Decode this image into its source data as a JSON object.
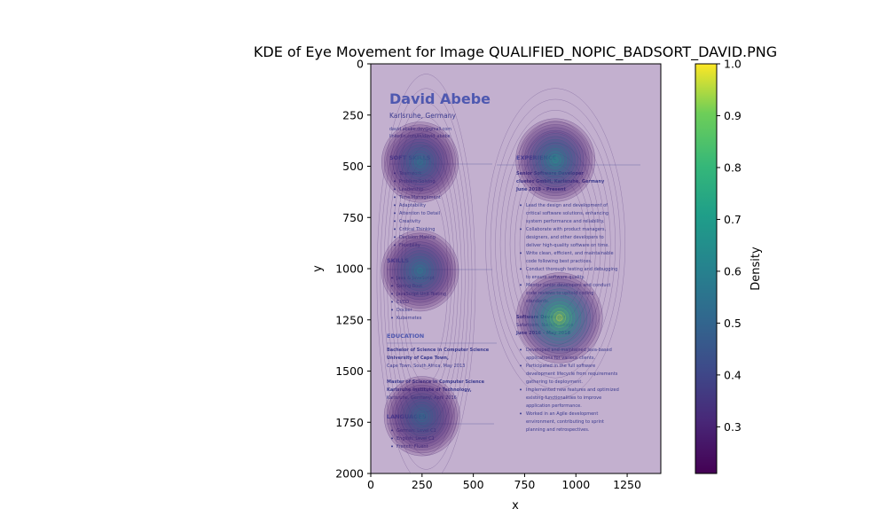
{
  "chart_data": {
    "type": "heatmap",
    "title": "KDE of Eye Movement for Image QUALIFIED_NOPIC_BADSORT_DAVID.PNG",
    "xlabel": "x",
    "ylabel": "y",
    "xlim": [
      0,
      1414
    ],
    "ylim": [
      2000,
      0
    ],
    "y_inverted": true,
    "x_ticks": [
      0,
      250,
      500,
      750,
      1000,
      1250
    ],
    "y_ticks": [
      0,
      250,
      500,
      750,
      1000,
      1250,
      1500,
      1750,
      2000
    ],
    "colorbar": {
      "label": "Density",
      "colormap": "viridis",
      "range": [
        0.21,
        1.0
      ],
      "ticks": [
        0.3,
        0.4,
        0.5,
        0.6,
        0.7,
        0.8,
        0.9,
        1.0
      ]
    },
    "hotspots": [
      {
        "x": 240,
        "y": 480,
        "density": 0.62
      },
      {
        "x": 900,
        "y": 470,
        "density": 0.72
      },
      {
        "x": 240,
        "y": 1010,
        "density": 0.64
      },
      {
        "x": 920,
        "y": 1240,
        "density": 1.0
      },
      {
        "x": 250,
        "y": 1720,
        "density": 0.58
      }
    ],
    "colors": {
      "background_tint": "#c3b0cf",
      "contour": "#5a3d80"
    }
  },
  "resume": {
    "name": "David Abebe",
    "location": "Karlsruhe, Germany",
    "email": "david.abebe.dev@gmail.com",
    "linkedin": "linkedin.com/in/david_abebe",
    "soft_skills_heading": "SOFT SKILLS",
    "soft_skills": [
      "Teamwork",
      "Problem-Solving",
      "Leadership",
      "Time Management",
      "Adaptability",
      "Attention to Detail",
      "Creativity",
      "Critical Thinking",
      "Decision Making",
      "Flexibility"
    ],
    "skills_heading": "SKILLS",
    "skills": [
      "Java & JavaScript",
      "Spring Boot",
      "JavaScript Unit Testing",
      "CI/CD",
      "Docker",
      "Kubernetes"
    ],
    "education_heading": "EDUCATION",
    "edu1_title": "Bachelor of Science in Computer Science",
    "edu1_school": "University of Cape Town,",
    "edu1_place": "Cape Town, South Africa, May 2013",
    "edu2_title": "Master of Science in Computer Science",
    "edu2_school": "Karlsruhe Institute of Technology,",
    "edu2_place": "Karlsruhe, Germany, April 2016",
    "languages_heading": "LANGUAGES",
    "languages": [
      "German: Level C1",
      "English: Level C1",
      "French: Fluent"
    ],
    "experience_heading": "EXPERIENCE",
    "job1_title": "Senior Software Developer",
    "job1_company": "cluetec GmbH, Karlsruhe, Germany",
    "job1_dates": "June 2018 – Present",
    "job1_bullets": [
      "Lead the design and development of",
      "critical software solutions, enhancing",
      "system performance and reliability.",
      "Collaborate with product managers,",
      "designers, and other developers to",
      "deliver high-quality software on time.",
      "Write clean, efficient, and maintainable",
      "code following best practices.",
      "Conduct thorough testing and debugging",
      "to ensure software quality.",
      "Mentor junior developers and conduct",
      "code reviews to uphold coding",
      "standards."
    ],
    "job2_title": "Software Developer",
    "job2_company": "Safaricom, Nairobi, Kenya",
    "job2_dates": "June 2016 – May 2018",
    "job2_bullets": [
      "Developed and maintained Java-based",
      "applications for various clients.",
      "Participated in the full software",
      "development lifecycle from requirements",
      "gathering to deployment.",
      "Implemented new features and optimized",
      "existing functionalities to improve",
      "application performance.",
      "Worked in an Agile development",
      "environment, contributing to sprint",
      "planning and retrospectives."
    ]
  }
}
